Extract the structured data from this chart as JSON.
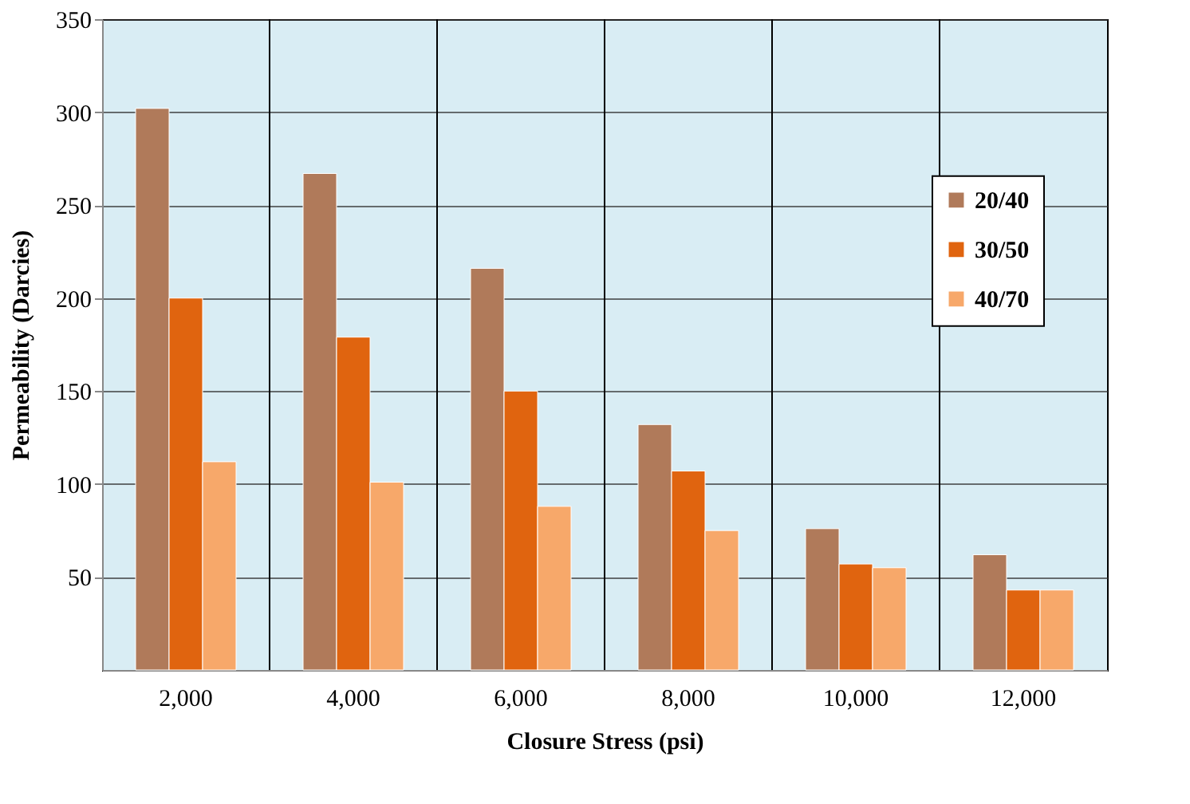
{
  "chart_data": {
    "type": "bar",
    "xlabel": "Closure Stress (psi)",
    "ylabel": "Permeability (Darcies)",
    "categories": [
      "2,000",
      "4,000",
      "6,000",
      "8,000",
      "10,000",
      "12,000"
    ],
    "series": [
      {
        "name": "20/40",
        "color": "#b07a5a",
        "values": [
          302,
          267,
          216,
          132,
          76,
          62
        ]
      },
      {
        "name": "30/50",
        "color": "#e0640f",
        "values": [
          200,
          179,
          150,
          107,
          57,
          43
        ]
      },
      {
        "name": "40/70",
        "color": "#f7a86a",
        "values": [
          112,
          101,
          88,
          75,
          55,
          43
        ]
      }
    ],
    "ylim": [
      0,
      350
    ],
    "yticks": [
      50,
      100,
      150,
      200,
      250,
      300,
      350
    ],
    "grid": true,
    "legend": "right"
  }
}
